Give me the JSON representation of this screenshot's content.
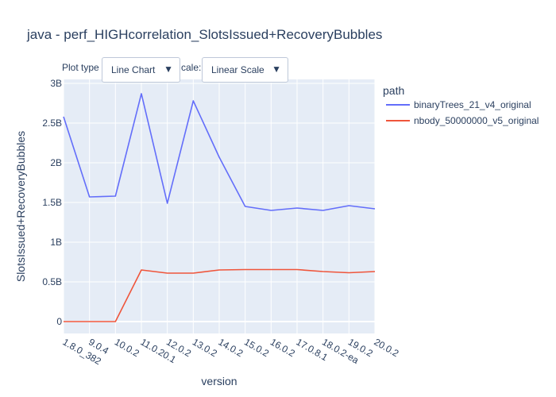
{
  "page": {
    "title": "java - perf_HIGHcorrelation_SlotsIssued+RecoveryBubbles"
  },
  "controls": {
    "plot_type_label": "Plot type",
    "plot_type_value": "Line Chart",
    "scale_label": "cale:",
    "scale_value": "Linear Scale",
    "dropdown_arrow": "▼"
  },
  "chart_data": {
    "type": "line",
    "xlabel": "version",
    "ylabel": "SlotsIssued+RecoveryBubbles",
    "categories": [
      "1.8.0_382",
      "9.0.4",
      "10.0.2",
      "11.0.20.1",
      "12.0.2",
      "13.0.2",
      "14.0.2",
      "15.0.2",
      "16.0.2",
      "17.0.8.1",
      "18.0.2-ea",
      "19.0.2",
      "20.0.2"
    ],
    "ylim": [
      -0.15,
      3.05
    ],
    "yticks": [
      0,
      0.5,
      1,
      1.5,
      2,
      2.5,
      3
    ],
    "ytick_labels": [
      "0",
      "0.5B",
      "1B",
      "1.5B",
      "2B",
      "2.5B",
      "3B"
    ],
    "grid": true,
    "legend_title": "path",
    "legend_position": "right",
    "series": [
      {
        "name": "binaryTrees_21_v4_original",
        "color": "#636efa",
        "values": [
          2.58,
          1.57,
          1.58,
          2.87,
          1.49,
          2.78,
          2.07,
          1.45,
          1.4,
          1.43,
          1.4,
          1.46,
          1.42
        ]
      },
      {
        "name": "nbody_50000000_v5_original",
        "color": "#ef553b",
        "values": [
          0.0,
          0.0,
          0.0,
          0.65,
          0.61,
          0.61,
          0.65,
          0.655,
          0.655,
          0.655,
          0.63,
          0.615,
          0.63
        ]
      }
    ]
  },
  "colors": {
    "plot_bg": "#e5ecf6",
    "grid": "#ffffff",
    "text": "#2a3f5f"
  }
}
